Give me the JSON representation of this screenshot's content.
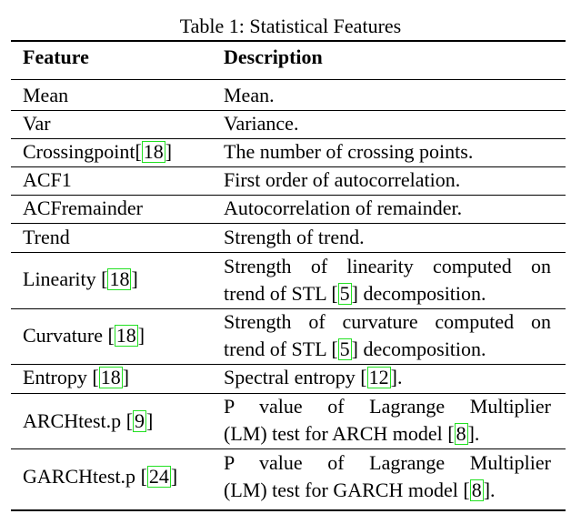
{
  "caption": "Table 1: Statistical Features",
  "headers": {
    "feature": "Feature",
    "description": "Description"
  },
  "rows": [
    {
      "feature": "Mean",
      "description": "Mean."
    },
    {
      "feature": "Var",
      "description": "Variance."
    },
    {
      "feature": "Crossingpoint",
      "feature_cite": "18",
      "description": "The number of crossing points."
    },
    {
      "feature": "ACF1",
      "description": "First order of autocorrelation."
    },
    {
      "feature": "ACFremainder",
      "description": "Autocorrelation of remainder."
    },
    {
      "feature": "Trend",
      "description": "Strength of trend."
    },
    {
      "feature": "Linearity ",
      "feature_cite": "18",
      "description_line1": "Strength of linearity computed on",
      "description_line2_a": "trend of STL ",
      "description_line2_cite": "5",
      "description_line2_b": " decomposition."
    },
    {
      "feature": "Curvature ",
      "feature_cite": "18",
      "description_line1": "Strength of curvature computed on",
      "description_line2_a": "trend of STL ",
      "description_line2_cite": "5",
      "description_line2_b": " decomposition."
    },
    {
      "feature": "Entropy ",
      "feature_cite": "18",
      "description_a": "Spectral entropy ",
      "description_cite": "12",
      "description_b": "."
    },
    {
      "feature": "ARCHtest.p ",
      "feature_cite": "9",
      "description_line1": "P value of Lagrange Multiplier",
      "description_line2_a": "(LM) test for ARCH model ",
      "description_line2_cite": "8",
      "description_line2_b": "."
    },
    {
      "feature": "GARCHtest.p ",
      "feature_cite": "24",
      "description_line1": "P value of Lagrange Multiplier",
      "description_line2_a": "(LM) test for GARCH model ",
      "description_line2_cite": "8",
      "description_line2_b": "."
    }
  ],
  "cite_border_color": "#22e022"
}
